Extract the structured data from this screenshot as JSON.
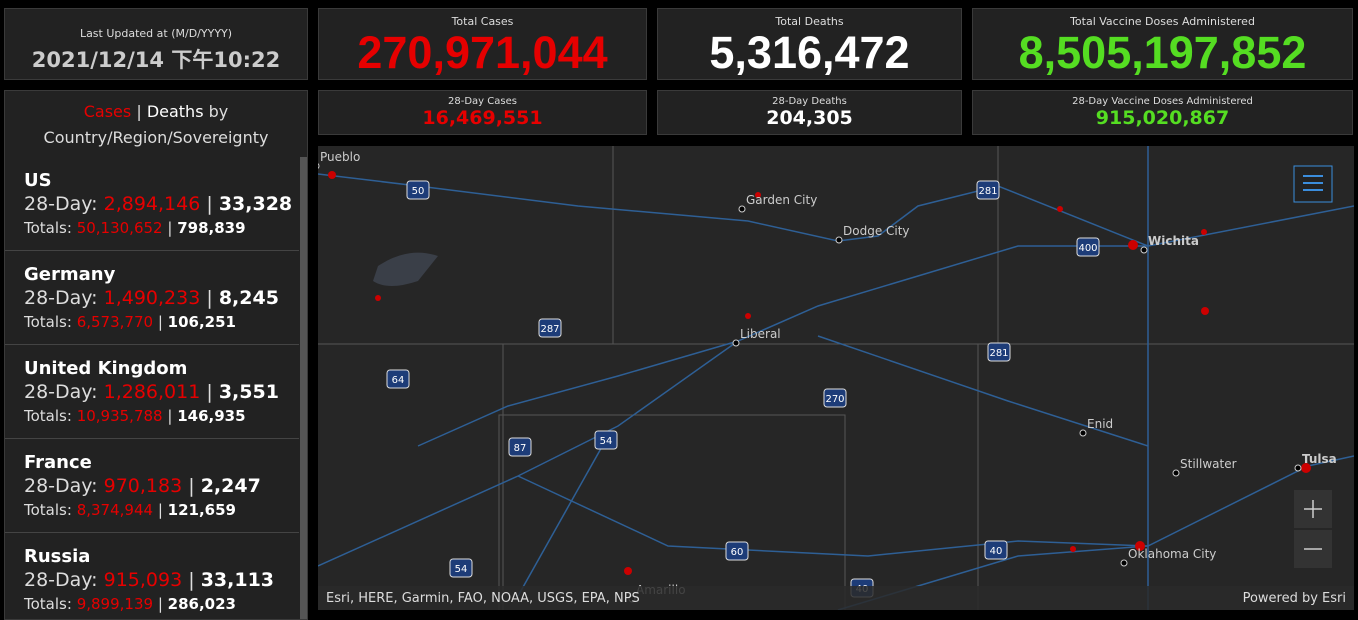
{
  "last_updated": {
    "label": "Last Updated at (M/D/YYYY)",
    "value": "2021/12/14 下午10:22"
  },
  "totals": [
    {
      "label": "Total Cases",
      "value": "270,971,044",
      "color": "#e60000"
    },
    {
      "label": "Total Deaths",
      "value": "5,316,472",
      "color": "#ffffff"
    },
    {
      "label": "Total Vaccine Doses Administered",
      "value": "8,505,197,852",
      "color": "#55dd22"
    }
  ],
  "day28": [
    {
      "label": "28-Day Cases",
      "value": "16,469,551",
      "color": "#e60000"
    },
    {
      "label": "28-Day Deaths",
      "value": "204,305",
      "color": "#ffffff"
    },
    {
      "label": "28-Day Vaccine Doses Administered",
      "value": "915,020,867",
      "color": "#55dd22"
    }
  ],
  "list": {
    "cases_tab": "Cases",
    "separator": "|",
    "deaths_tab": "Deaths",
    "subtitle_by": "by",
    "subtitle": "Country/Region/Sovereignty",
    "day28_label": "28-Day:",
    "totals_label": "Totals:",
    "items": [
      {
        "name": "US",
        "day28_cases": "2,894,146",
        "day28_deaths": "33,328",
        "total_cases": "50,130,652",
        "total_deaths": "798,839"
      },
      {
        "name": "Germany",
        "day28_cases": "1,490,233",
        "day28_deaths": "8,245",
        "total_cases": "6,573,770",
        "total_deaths": "106,251"
      },
      {
        "name": "United Kingdom",
        "day28_cases": "1,286,011",
        "day28_deaths": "3,551",
        "total_cases": "10,935,788",
        "total_deaths": "146,935"
      },
      {
        "name": "France",
        "day28_cases": "970,183",
        "day28_deaths": "2,247",
        "total_cases": "8,374,944",
        "total_deaths": "121,659"
      },
      {
        "name": "Russia",
        "day28_cases": "915,093",
        "day28_deaths": "33,113",
        "total_cases": "9,899,139",
        "total_deaths": "286,023"
      }
    ]
  },
  "map": {
    "cities": [
      "Pueblo",
      "Garden City",
      "Dodge City",
      "Wichita",
      "Liberal",
      "Enid",
      "Stillwater",
      "Tulsa",
      "Oklahoma City",
      "Amarillo"
    ],
    "shields": [
      "50",
      "281",
      "400",
      "287",
      "281",
      "64",
      "270",
      "87",
      "54",
      "60",
      "54",
      "40",
      "40"
    ],
    "attribution": "Esri, HERE, Garmin, FAO, NOAA, USGS, EPA, NPS",
    "powered": "Powered by Esri"
  }
}
